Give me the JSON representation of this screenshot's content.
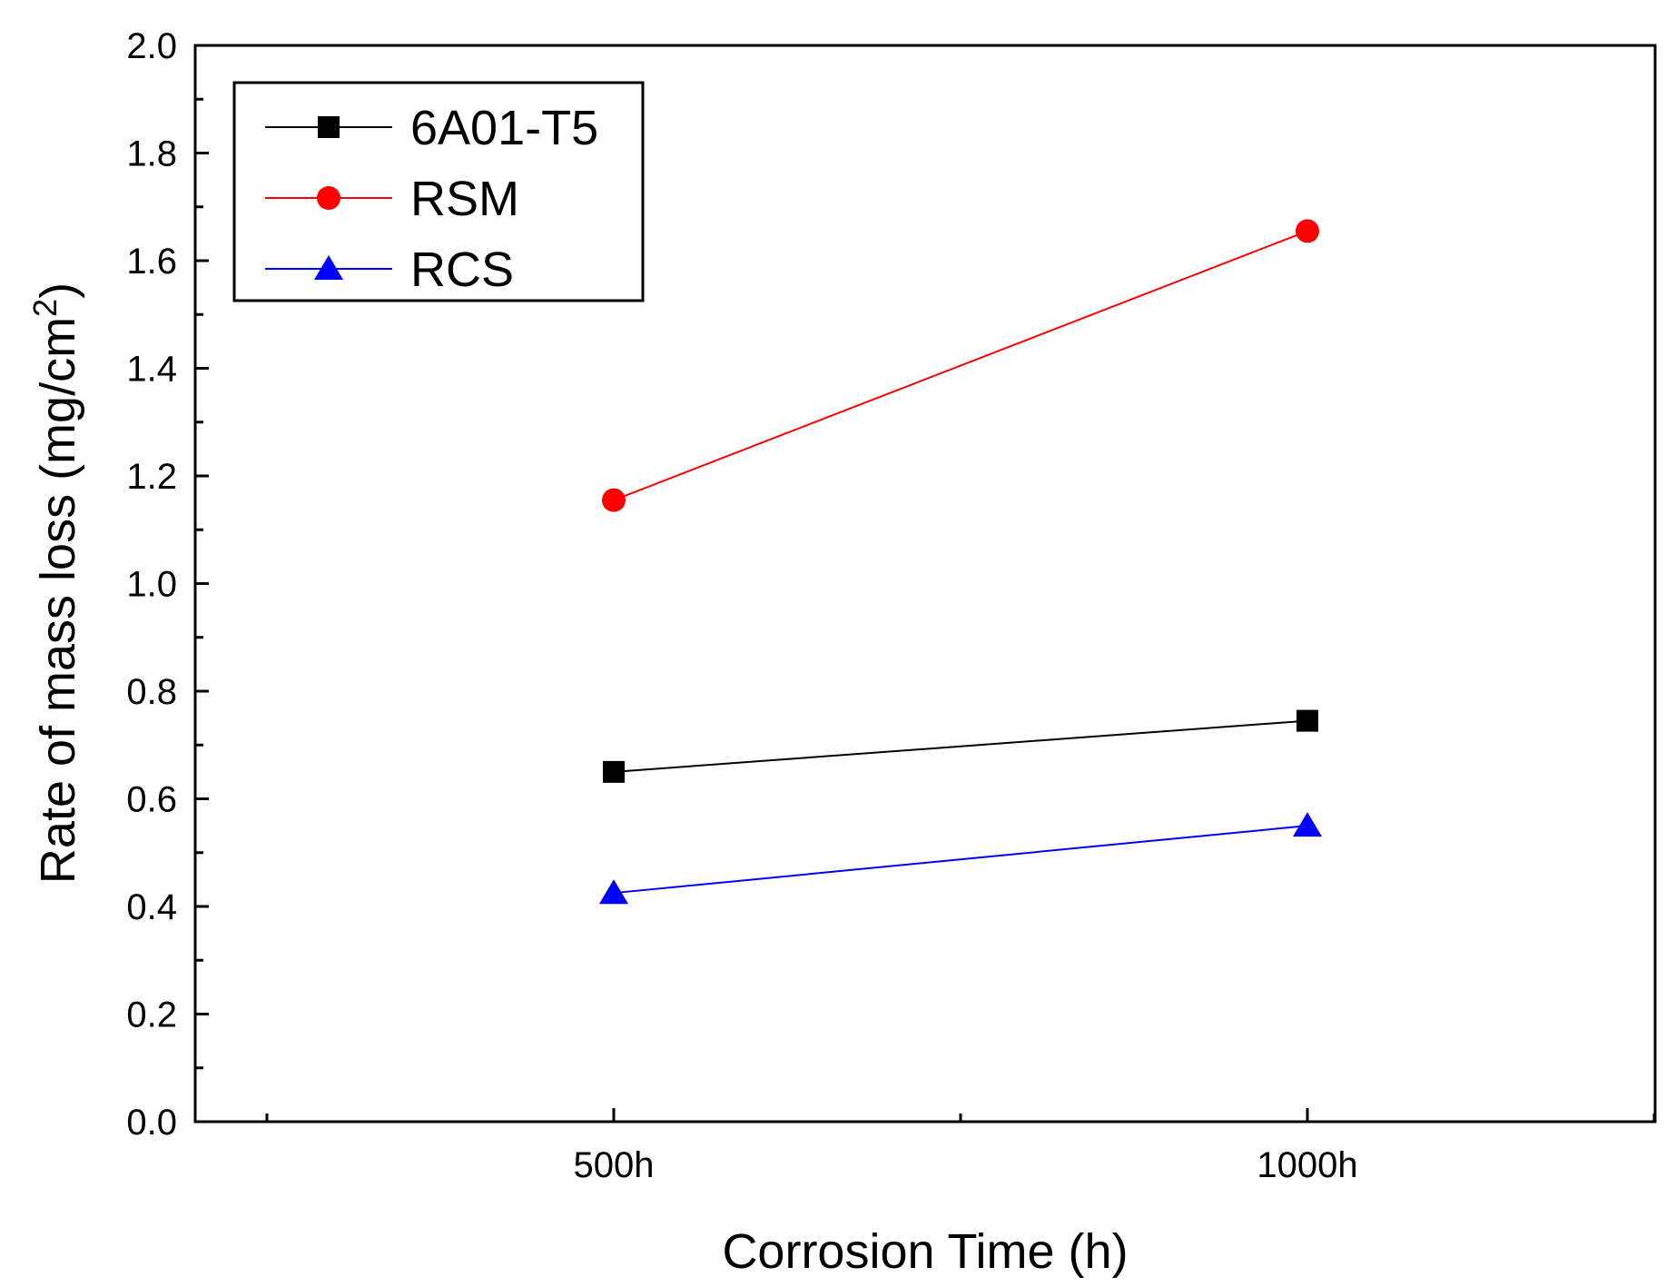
{
  "chart_data": {
    "type": "line",
    "title": "",
    "categories": [
      "500h",
      "1000h"
    ],
    "series": [
      {
        "name": "6A01-T5",
        "values": [
          0.65,
          0.745
        ],
        "color": "#000000",
        "marker": "square"
      },
      {
        "name": "RSM",
        "values": [
          1.155,
          1.655
        ],
        "color": "#ff0000",
        "marker": "circle"
      },
      {
        "name": "RCS",
        "values": [
          0.425,
          0.55
        ],
        "color": "#0000ff",
        "marker": "triangle"
      }
    ],
    "xlabel": "Corrosion Time (h)",
    "ylabel": {
      "main": "Rate of mass loss (mg/cm",
      "superscript": "2",
      "close": ")"
    },
    "ylim": [
      0.0,
      2.0
    ],
    "yticks": [
      "0.0",
      "0.2",
      "0.4",
      "0.6",
      "0.8",
      "1.0",
      "1.2",
      "1.4",
      "1.6",
      "1.8",
      "2.0"
    ],
    "grid": false,
    "legend_position": "top-left"
  }
}
